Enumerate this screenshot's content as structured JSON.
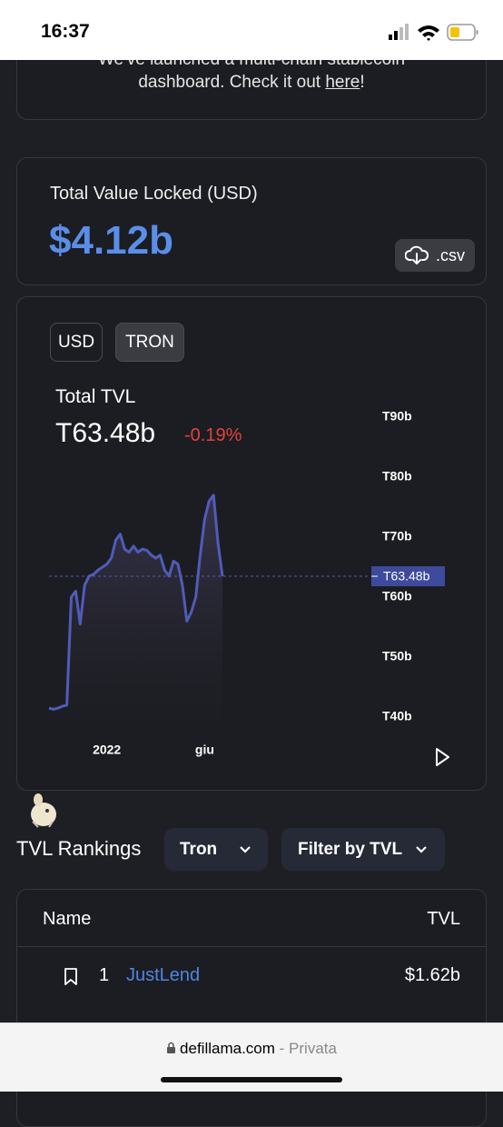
{
  "status_bar": {
    "time": "16:37"
  },
  "banner": {
    "text": "We've launched a multi-chain stablecoin dashboard. Check it out ",
    "link": "here",
    "end": "!"
  },
  "tvl_card": {
    "title": "Total Value Locked (USD)",
    "value": "$4.12b",
    "csv_button": ".csv"
  },
  "chart_card": {
    "buttons": [
      "USD",
      "TRON"
    ],
    "label": "Total TVL",
    "value": "T63.48b",
    "change": "-0.19%",
    "chart": {
      "type": "area",
      "values": [
        41.5,
        41.3,
        41.5,
        41.8,
        42,
        60,
        61,
        55.5,
        62,
        63.5,
        63.8,
        64.5,
        65,
        65.5,
        66.5,
        69.5,
        70.5,
        68,
        67.5,
        68.5,
        67.5,
        68,
        67.8,
        67,
        66.5,
        67,
        64.5,
        63.5,
        66,
        65.5,
        62,
        56,
        57.5,
        60,
        67,
        73,
        76,
        77,
        69,
        63.48
      ],
      "color": "#4f5cb8",
      "xlim": [
        0,
        39
      ],
      "xticks": [
        {
          "value": 13,
          "label": "2022"
        },
        {
          "value": 35,
          "label": "giu"
        }
      ],
      "ylim": [
        37.5,
        93
      ],
      "yticks": [
        {
          "value": 90,
          "label": "T90b"
        },
        {
          "value": 80,
          "label": "T80b"
        },
        {
          "value": 70,
          "label": "T70b"
        },
        {
          "value": 60,
          "label": "T60b"
        },
        {
          "value": 50,
          "label": "T50b"
        },
        {
          "value": 40,
          "label": "T40b"
        }
      ],
      "current": {
        "value": 63.48,
        "label": "T63.48b"
      }
    }
  },
  "rankings": {
    "title": "TVL Rankings",
    "chain_filter": "Tron",
    "sort_filter": "Filter by TVL"
  },
  "table": {
    "headers": [
      "Name",
      "TVL"
    ],
    "rows": [
      [
        "1",
        "JustLend",
        "$1.62b"
      ]
    ]
  },
  "browser_bar": {
    "domain": "defillama.com",
    "separator": "-",
    "mode": "Privata"
  }
}
